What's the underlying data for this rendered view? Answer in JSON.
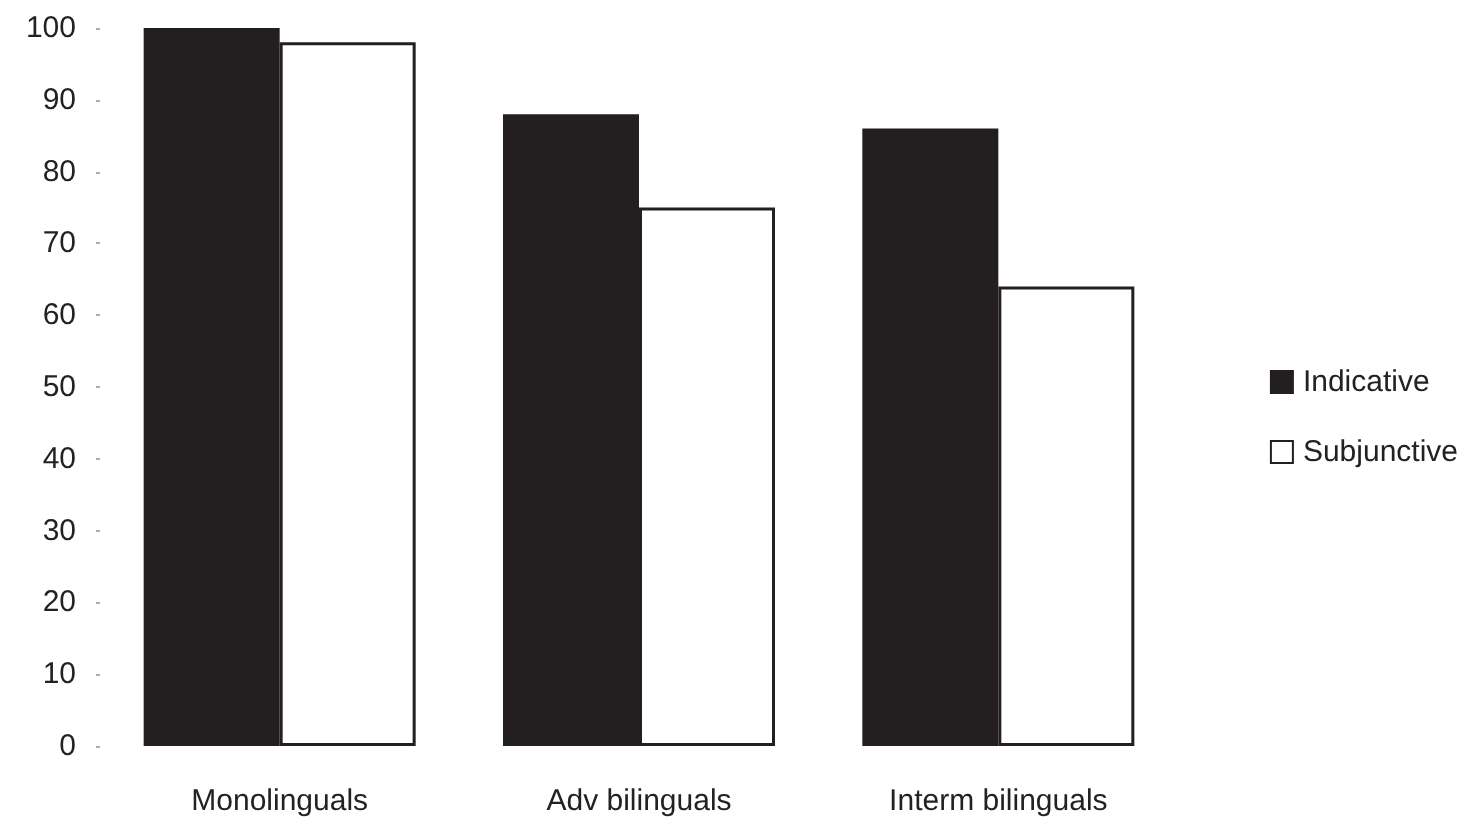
{
  "chart_data": {
    "type": "bar",
    "categories": [
      "Monolinguals",
      "Adv bilinguals",
      "Interm bilinguals"
    ],
    "series": [
      {
        "name": "Indicative",
        "color": "#231f20",
        "values": [
          100,
          88,
          86
        ]
      },
      {
        "name": "Subjunctive",
        "color": "#ffffff",
        "values": [
          98,
          75,
          64
        ]
      }
    ],
    "ylim": [
      0,
      100
    ],
    "yticks": [
      0,
      10,
      20,
      30,
      40,
      50,
      60,
      70,
      80,
      90,
      100
    ],
    "grid": false,
    "legend": "right"
  }
}
